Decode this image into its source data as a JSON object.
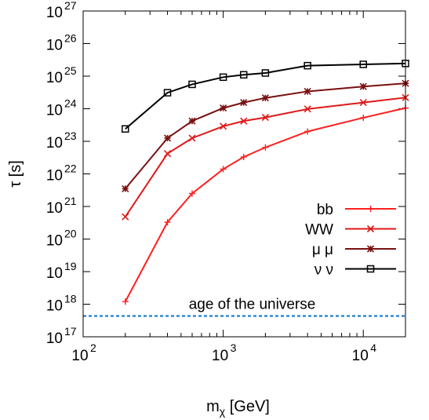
{
  "chart_data": {
    "type": "line",
    "xscale": "log",
    "yscale": "log",
    "xlim": [
      100,
      20000
    ],
    "ylim": [
      1e+17,
      1e+27
    ],
    "xlabel": "m",
    "xlabel_sub": "χ",
    "xlabel_unit": "[GeV]",
    "ylabel": "τ [s]",
    "x_ticks": [
      {
        "base": "10",
        "exp": "2",
        "value": 100
      },
      {
        "base": "10",
        "exp": "3",
        "value": 1000
      },
      {
        "base": "10",
        "exp": "4",
        "value": 10000
      }
    ],
    "y_ticks": [
      {
        "base": "10",
        "exp": "17",
        "value": 1e+17
      },
      {
        "base": "10",
        "exp": "18",
        "value": 1e+18
      },
      {
        "base": "10",
        "exp": "19",
        "value": 1e+19
      },
      {
        "base": "10",
        "exp": "20",
        "value": 1e+20
      },
      {
        "base": "10",
        "exp": "21",
        "value": 1e+21
      },
      {
        "base": "10",
        "exp": "22",
        "value": 1e+22
      },
      {
        "base": "10",
        "exp": "23",
        "value": 1e+23
      },
      {
        "base": "10",
        "exp": "24",
        "value": 1e+24
      },
      {
        "base": "10",
        "exp": "25",
        "value": 1e+25
      },
      {
        "base": "10",
        "exp": "26",
        "value": 1e+26
      },
      {
        "base": "10",
        "exp": "27",
        "value": 1e+27
      }
    ],
    "legend_position": "right",
    "series": [
      {
        "name": "bb",
        "color": "#ff2020",
        "marker": "plus",
        "x": [
          200,
          400,
          600,
          1000,
          1400,
          2000,
          4000,
          10000,
          20000
        ],
        "y": [
          1.2e+18,
          3.3e+20,
          2.5e+21,
          1.4e+22,
          3.3e+22,
          6.5e+22,
          2e+23,
          5.3e+23,
          1.05e+24
        ]
      },
      {
        "name": "WW",
        "color": "#e01818",
        "marker": "x",
        "x": [
          200,
          400,
          600,
          1000,
          1400,
          2000,
          4000,
          10000,
          20000
        ],
        "y": [
          4.8e+20,
          4.2e+22,
          1.25e+23,
          2.9e+23,
          4.2e+23,
          5.4e+23,
          9.8e+23,
          1.55e+24,
          2.2e+24
        ]
      },
      {
        "name": "μ μ",
        "color": "#7a1010",
        "marker": "star",
        "x": [
          200,
          400,
          600,
          1000,
          1400,
          2000,
          4000,
          10000,
          20000
        ],
        "y": [
          3.5e+21,
          1.25e+23,
          4.2e+23,
          1.05e+24,
          1.55e+24,
          2.15e+24,
          3.4e+24,
          4.8e+24,
          6e+24
        ]
      },
      {
        "name": "ν ν",
        "color": "#000000",
        "marker": "square",
        "x": [
          200,
          400,
          600,
          1000,
          1400,
          2000,
          4000,
          10000,
          20000
        ],
        "y": [
          2.4e+23,
          3.1e+24,
          5.6e+24,
          9.3e+24,
          1.1e+25,
          1.25e+25,
          2.1e+25,
          2.3e+25,
          2.45e+25
        ]
      }
    ],
    "annotations": [
      {
        "text": "age of the universe",
        "y": 4.35e+17,
        "color": "#1f7fcf",
        "style": "dashed"
      }
    ]
  }
}
